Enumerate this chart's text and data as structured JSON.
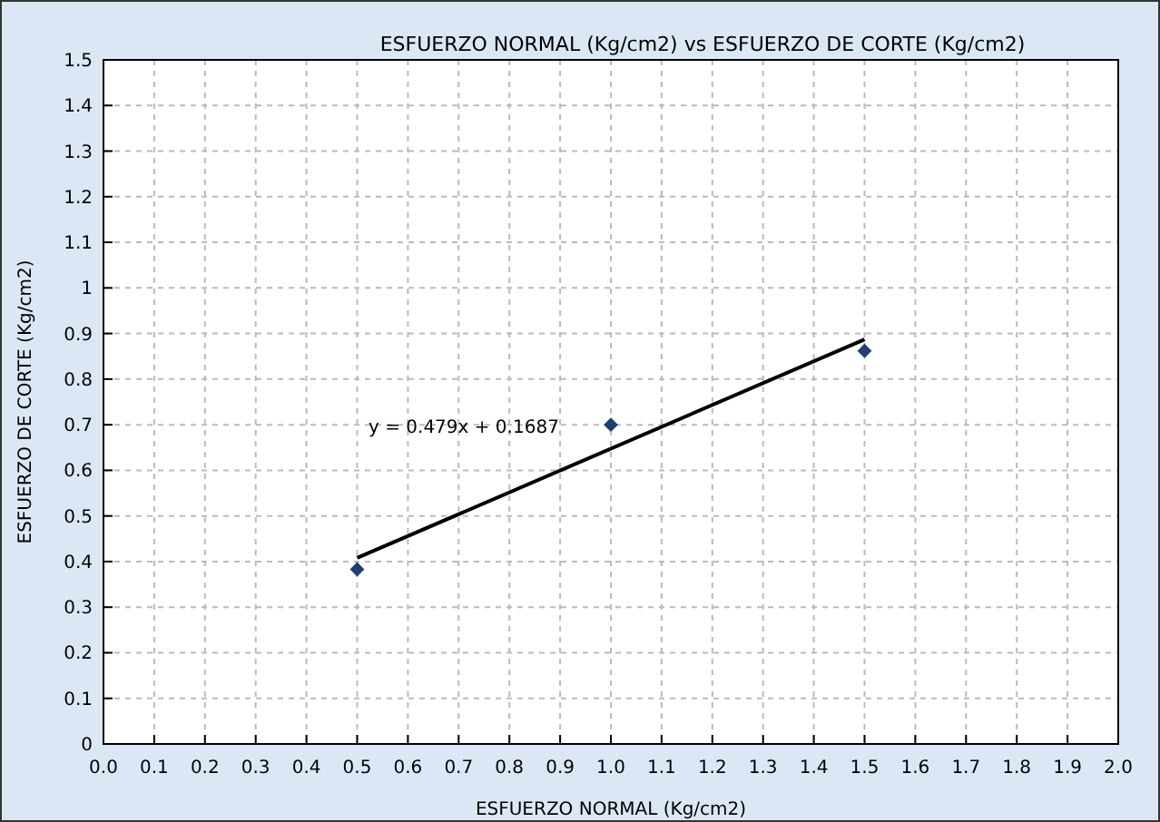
{
  "chart_data": {
    "type": "scatter",
    "title": "ESFUERZO NORMAL (Kg/cm2) vs ESFUERZO DE CORTE (Kg/cm2)",
    "xlabel": "ESFUERZO NORMAL (Kg/cm2)",
    "ylabel": "ESFUERZO DE CORTE  (Kg/cm2)",
    "series": [
      {
        "color": "#1f3f6e",
        "x": [
          0.5,
          1.0,
          1.5
        ],
        "values": [
          0.383,
          0.7,
          0.862
        ],
        "marker": "diamond"
      },
      {
        "type": "line",
        "color": "#000000",
        "x": [
          0.5,
          1.5
        ],
        "values": [
          0.408,
          0.887
        ],
        "marker": "none"
      }
    ],
    "annotations": [
      "y = 0.479x + 0.1687"
    ],
    "xlim": [
      0,
      2
    ],
    "ylim": [
      0,
      1.5
    ],
    "xticks": [
      {
        "value": 0,
        "label": "0.0"
      },
      0.1,
      0.2,
      0.3,
      0.4,
      0.5,
      0.6,
      0.7,
      0.8,
      0.9,
      {
        "value": 1,
        "label": "1.0"
      },
      1.1,
      1.2,
      1.3,
      1.4,
      1.5,
      1.6,
      1.7,
      1.8,
      1.9,
      {
        "value": 2,
        "label": "2.0"
      }
    ],
    "yticks": [
      0,
      0.1,
      0.2,
      0.3,
      0.4,
      0.5,
      0.6,
      0.7,
      0.8,
      0.9,
      1,
      1.1,
      1.2,
      1.3,
      1.4,
      1.5
    ],
    "grid": true
  }
}
